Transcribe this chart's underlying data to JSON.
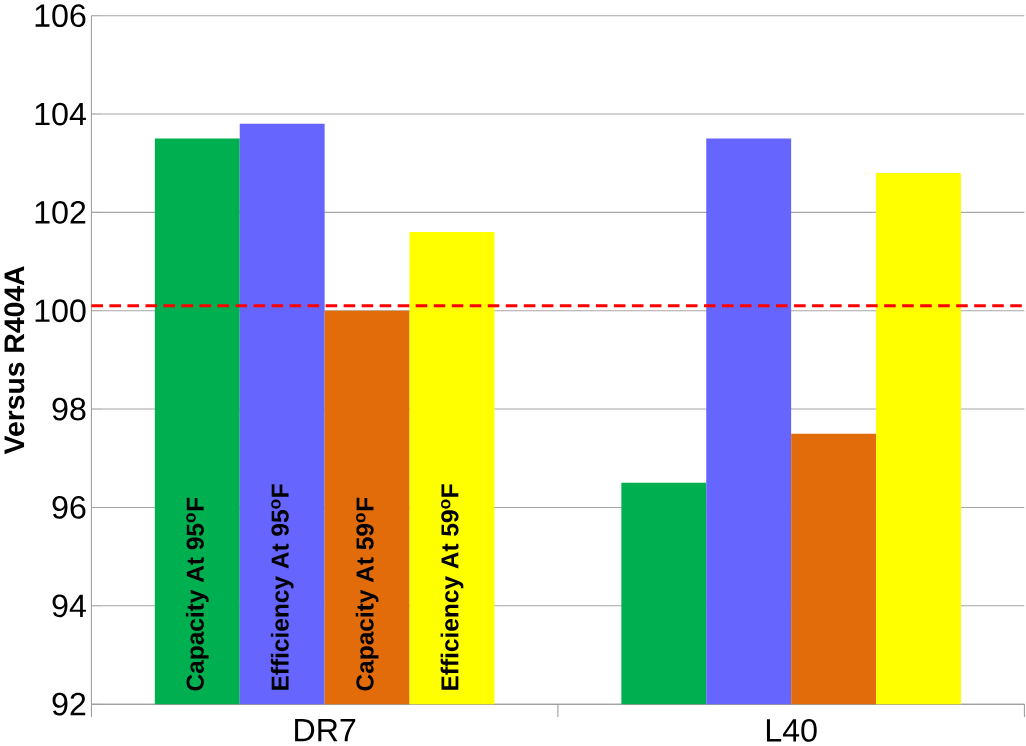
{
  "chart_data": {
    "type": "bar",
    "ylabel": "Versus R404A",
    "categories": [
      "DR7",
      "L40"
    ],
    "series": [
      {
        "name": "Capacity At 95$^{o}$F",
        "color": "#00b050",
        "values": [
          103.5,
          96.5
        ]
      },
      {
        "name": "Efficiency At 95$^{o}$F",
        "color": "#6666ff",
        "values": [
          103.8,
          103.5
        ]
      },
      {
        "name": "Capacity At 59$^{o}$F",
        "color": "#e36c0a",
        "values": [
          100.0,
          97.5
        ]
      },
      {
        "name": "Efficiency At 59$^{o}$F",
        "color": "#ffff00",
        "values": [
          101.6,
          102.8
        ]
      }
    ],
    "ylim": [
      92,
      106
    ],
    "yticks": [
      92,
      94,
      96,
      98,
      100,
      102,
      104,
      106
    ],
    "grid": "y",
    "ref_lines": [
      {
        "axis": "y",
        "value": 100.1,
        "color": "#ff0000",
        "line_style": "dashed"
      }
    ]
  }
}
